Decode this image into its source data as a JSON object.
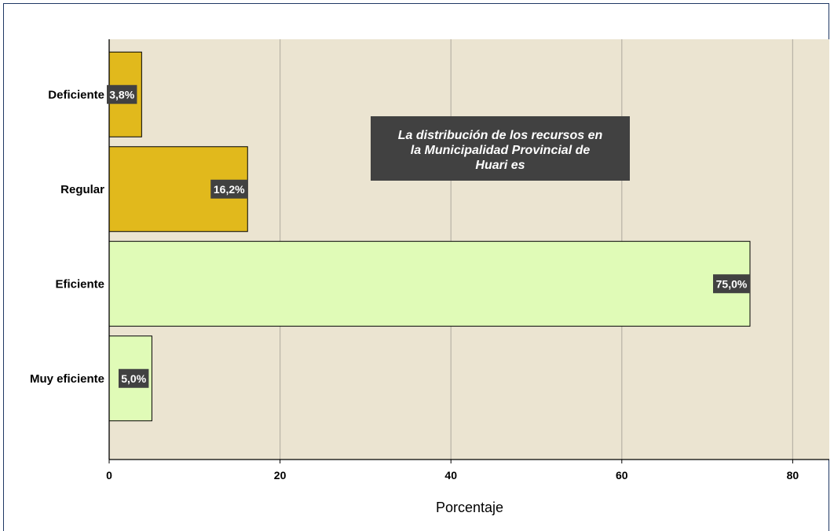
{
  "chart_data": {
    "type": "bar",
    "orientation": "horizontal",
    "categories": [
      "Deficiente",
      "Regular",
      "Eficiente",
      "Muy eficiente"
    ],
    "values": [
      3.8,
      16.2,
      75.0,
      5.0
    ],
    "value_labels": [
      "3,8%",
      "16,2%",
      "75,0%",
      "5,0%"
    ],
    "bar_colors": [
      "#e1b91c",
      "#e1b91c",
      "#e0fbb7",
      "#e0fbb7"
    ],
    "xlabel": "Porcentaje",
    "ylabel": "",
    "xlim": [
      0,
      84
    ],
    "xticks": [
      0,
      20,
      40,
      60,
      80
    ],
    "xtick_labels": [
      "0",
      "20",
      "40",
      "60",
      "80"
    ],
    "grid": "vertical",
    "annotation": [
      "La distribución de los recursos en",
      "la Municipalidad Provincial de",
      "Huari es"
    ],
    "plot_background": "#ebe4d1",
    "label_box_color": "#414141"
  }
}
